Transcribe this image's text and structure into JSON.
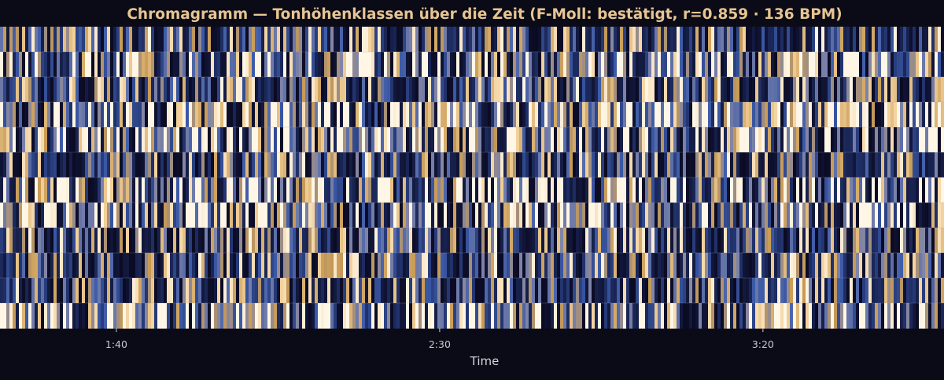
{
  "chart_data": {
    "type": "heatmap",
    "title": "Chromagramm — Tonhöhenklassen über die Zeit (F-Moll: bestätigt, r=0.859 · 136 BPM)",
    "xlabel": "Time",
    "ylabel": "",
    "x_tick_labels": [
      "1:40",
      "2:30",
      "3:20"
    ],
    "x_tick_values_seconds": [
      100,
      150,
      200
    ],
    "xlim_seconds": [
      82,
      228
    ],
    "rows": 12,
    "time_frames": 300,
    "value_range": [
      0,
      1
    ],
    "colormap": [
      "#0b0b24",
      "#1f2f66",
      "#3c5aa8",
      "#7f84a8",
      "#c79a55",
      "#f1cf98",
      "#fff6e6"
    ],
    "hot_rows": [
      1,
      3,
      4,
      6,
      7,
      11
    ],
    "grid": true
  },
  "colors": {
    "background": "#0b0b17",
    "title": "#e6c592",
    "tick_text": "#c8c8d0",
    "axis_label": "#d4d4dc",
    "grid": "#9aa0b8"
  }
}
